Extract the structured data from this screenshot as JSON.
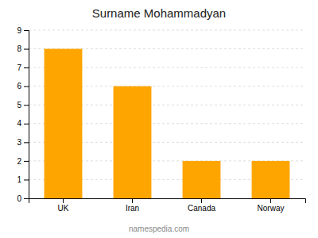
{
  "chart_data": {
    "type": "bar",
    "title": "Surname Mohammadyan",
    "categories": [
      "UK",
      "Iran",
      "Canada",
      "Norway"
    ],
    "values": [
      8,
      6,
      2,
      2
    ],
    "color": "#FFA500",
    "ylim": [
      0,
      9
    ],
    "yticks": [
      0,
      1,
      2,
      3,
      4,
      5,
      6,
      7,
      8,
      9
    ],
    "grid": true,
    "annotations": [
      "namespedia.com"
    ]
  }
}
